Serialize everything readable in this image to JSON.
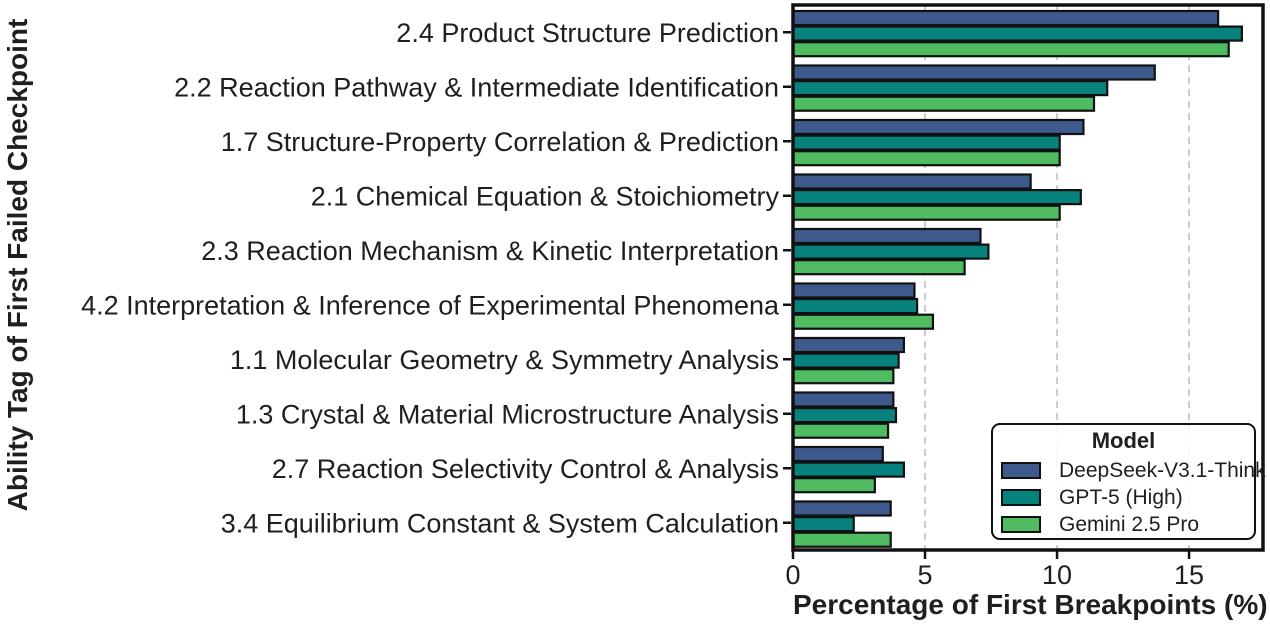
{
  "figure": {
    "background": "#ffffff",
    "text_color": "#1f1f1f"
  },
  "legend": {
    "title": "Model",
    "position": "lower right"
  },
  "chart_data": {
    "type": "bar",
    "orientation": "horizontal",
    "xlabel": "Percentage of First Breakpoints (%)",
    "ylabel": "Ability Tag of First Failed Checkpoint",
    "xlim": [
      0,
      17.8
    ],
    "xticks": [
      0,
      5,
      10,
      15
    ],
    "grid": "vertical-dashed",
    "bar_edge_color": "#111111",
    "categories": [
      "2.4 Product Structure Prediction",
      "2.2 Reaction Pathway & Intermediate Identification",
      "1.7 Structure-Property Correlation & Prediction",
      "2.1 Chemical Equation & Stoichiometry",
      "2.3 Reaction Mechanism & Kinetic Interpretation",
      "4.2 Interpretation & Inference of Experimental Phenomena",
      "1.1 Molecular Geometry & Symmetry Analysis",
      "1.3 Crystal & Material Microstructure Analysis",
      "2.7 Reaction Selectivity Control & Analysis",
      "3.4 Equilibrium Constant & System Calculation"
    ],
    "series": [
      {
        "name": "DeepSeek-V3.1-Think",
        "color": "#3E598C",
        "values": [
          16.1,
          13.7,
          11.0,
          9.0,
          7.1,
          4.6,
          4.2,
          3.8,
          3.4,
          3.7
        ]
      },
      {
        "name": "GPT-5 (High)",
        "color": "#08827D",
        "values": [
          17.0,
          11.9,
          10.1,
          10.9,
          7.4,
          4.7,
          4.0,
          3.9,
          4.2,
          2.3
        ]
      },
      {
        "name": "Gemini 2.5 Pro",
        "color": "#4FBC61",
        "values": [
          16.5,
          11.4,
          10.1,
          10.1,
          6.5,
          5.3,
          3.8,
          3.6,
          3.1,
          3.7
        ]
      }
    ]
  }
}
